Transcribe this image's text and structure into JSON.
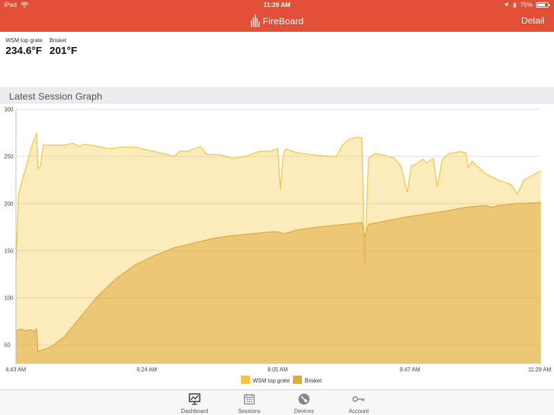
{
  "status_bar": {
    "device": "iPad",
    "time": "11:28 AM",
    "battery": "75%",
    "battery_level": 0.75
  },
  "nav": {
    "brand": "FireBoard",
    "detail_label": "Detail"
  },
  "readings": [
    {
      "label": "WSM top grate",
      "value": "234.6°F"
    },
    {
      "label": "Brisket",
      "value": "201°F"
    }
  ],
  "section_title": "Latest Session Graph",
  "colors": {
    "accent": "#e04f36",
    "series_grate": "#f5c53b",
    "series_brisket": "#dfa93c"
  },
  "chart_data": {
    "type": "area",
    "ylim": [
      30,
      300
    ],
    "yticks": [
      50,
      100,
      150,
      200,
      250,
      300
    ],
    "xlim": [
      "4:43 AM",
      "11:28 AM"
    ],
    "xticks": [
      "4:43 AM",
      "6:24 AM",
      "8:05 AM",
      "9:47 AM",
      "11:28 AM"
    ],
    "grid": true,
    "legend_position": "bottom-center",
    "series": [
      {
        "name": "WSM top grate",
        "points": [
          [
            "4:43 AM",
            135
          ],
          [
            "4:45 AM",
            210
          ],
          [
            "4:50 AM",
            235
          ],
          [
            "4:55 AM",
            260
          ],
          [
            "4:59 AM",
            275
          ],
          [
            "5:00 AM",
            237
          ],
          [
            "5:02 AM",
            240
          ],
          [
            "5:04 AM",
            262
          ],
          [
            "5:10 AM",
            262
          ],
          [
            "5:20 AM",
            262
          ],
          [
            "5:27 AM",
            264
          ],
          [
            "5:30 AM",
            262
          ],
          [
            "5:32 AM",
            260
          ],
          [
            "5:35 AM",
            263
          ],
          [
            "5:45 AM",
            261
          ],
          [
            "5:55 AM",
            258
          ],
          [
            "6:05 AM",
            260
          ],
          [
            "6:15 AM",
            260
          ],
          [
            "6:20 AM",
            258
          ],
          [
            "6:30 AM",
            255
          ],
          [
            "6:40 AM",
            252
          ],
          [
            "6:45 AM",
            250
          ],
          [
            "6:50 AM",
            256
          ],
          [
            "6:55 AM",
            255
          ],
          [
            "7:00 AM",
            258
          ],
          [
            "7:05 AM",
            260
          ],
          [
            "7:07 AM",
            258
          ],
          [
            "7:10 AM",
            252
          ],
          [
            "7:20 AM",
            252
          ],
          [
            "7:30 AM",
            248
          ],
          [
            "7:40 AM",
            250
          ],
          [
            "7:50 AM",
            255
          ],
          [
            "8:00 AM",
            256
          ],
          [
            "8:05 AM",
            258
          ],
          [
            "8:07 AM",
            215
          ],
          [
            "8:09 AM",
            250
          ],
          [
            "8:11 AM",
            258
          ],
          [
            "8:20 AM",
            254
          ],
          [
            "8:30 AM",
            252
          ],
          [
            "8:45 AM",
            250
          ],
          [
            "8:50 AM",
            250
          ],
          [
            "8:55 AM",
            262
          ],
          [
            "9:00 AM",
            268
          ],
          [
            "9:05 AM",
            270
          ],
          [
            "9:10 AM",
            270
          ],
          [
            "9:12 AM",
            135
          ],
          [
            "9:15 AM",
            248
          ],
          [
            "9:20 AM",
            253
          ],
          [
            "9:25 AM",
            252
          ],
          [
            "9:35 AM",
            248
          ],
          [
            "9:40 AM",
            240
          ],
          [
            "9:45 AM",
            212
          ],
          [
            "9:48 AM",
            240
          ],
          [
            "9:52 AM",
            242
          ],
          [
            "9:57 AM",
            247
          ],
          [
            "10:00 AM",
            243
          ],
          [
            "10:05 AM",
            248
          ],
          [
            "10:08 AM",
            218
          ],
          [
            "10:12 AM",
            247
          ],
          [
            "10:17 AM",
            253
          ],
          [
            "10:25 AM",
            255
          ],
          [
            "10:30 AM",
            254
          ],
          [
            "10:32 AM",
            238
          ],
          [
            "10:35 AM",
            245
          ],
          [
            "10:45 AM",
            232
          ],
          [
            "10:55 AM",
            225
          ],
          [
            "11:05 AM",
            220
          ],
          [
            "11:10 AM",
            210
          ],
          [
            "11:15 AM",
            225
          ],
          [
            "11:28 AM",
            234.6
          ]
        ]
      },
      {
        "name": "Brisket",
        "points": [
          [
            "4:43 AM",
            65
          ],
          [
            "4:47 AM",
            67
          ],
          [
            "4:50 AM",
            65
          ],
          [
            "4:55 AM",
            66
          ],
          [
            "4:57 AM",
            64
          ],
          [
            "4:58 AM",
            66
          ],
          [
            "4:59 AM",
            67
          ],
          [
            "5:00 AM",
            43
          ],
          [
            "5:10 AM",
            48
          ],
          [
            "5:20 AM",
            58
          ],
          [
            "5:30 AM",
            75
          ],
          [
            "5:45 AM",
            100
          ],
          [
            "6:00 AM",
            120
          ],
          [
            "6:15 AM",
            135
          ],
          [
            "6:30 AM",
            145
          ],
          [
            "6:45 AM",
            153
          ],
          [
            "7:00 AM",
            158
          ],
          [
            "7:15 AM",
            163
          ],
          [
            "7:30 AM",
            166
          ],
          [
            "7:45 AM",
            168
          ],
          [
            "8:00 AM",
            170
          ],
          [
            "8:05 AM",
            170
          ],
          [
            "8:10 AM",
            168
          ],
          [
            "8:20 AM",
            172
          ],
          [
            "8:35 AM",
            175
          ],
          [
            "8:50 AM",
            177
          ],
          [
            "9:05 AM",
            179
          ],
          [
            "9:10 AM",
            180
          ],
          [
            "9:12 AM",
            165
          ],
          [
            "9:15 AM",
            178
          ],
          [
            "9:30 AM",
            182
          ],
          [
            "9:45 AM",
            186
          ],
          [
            "10:00 AM",
            189
          ],
          [
            "10:15 AM",
            192
          ],
          [
            "10:30 AM",
            196
          ],
          [
            "10:45 AM",
            198
          ],
          [
            "10:50 AM",
            196
          ],
          [
            "10:55 AM",
            198
          ],
          [
            "11:10 AM",
            200
          ],
          [
            "11:28 AM",
            201
          ]
        ]
      }
    ]
  },
  "tabs": [
    {
      "label": "Dashboard",
      "icon": "monitor-chart-icon"
    },
    {
      "label": "Sessions",
      "icon": "calendar-icon"
    },
    {
      "label": "Devices",
      "icon": "thermometer-gauge-icon"
    },
    {
      "label": "Account",
      "icon": "key-icon"
    }
  ]
}
